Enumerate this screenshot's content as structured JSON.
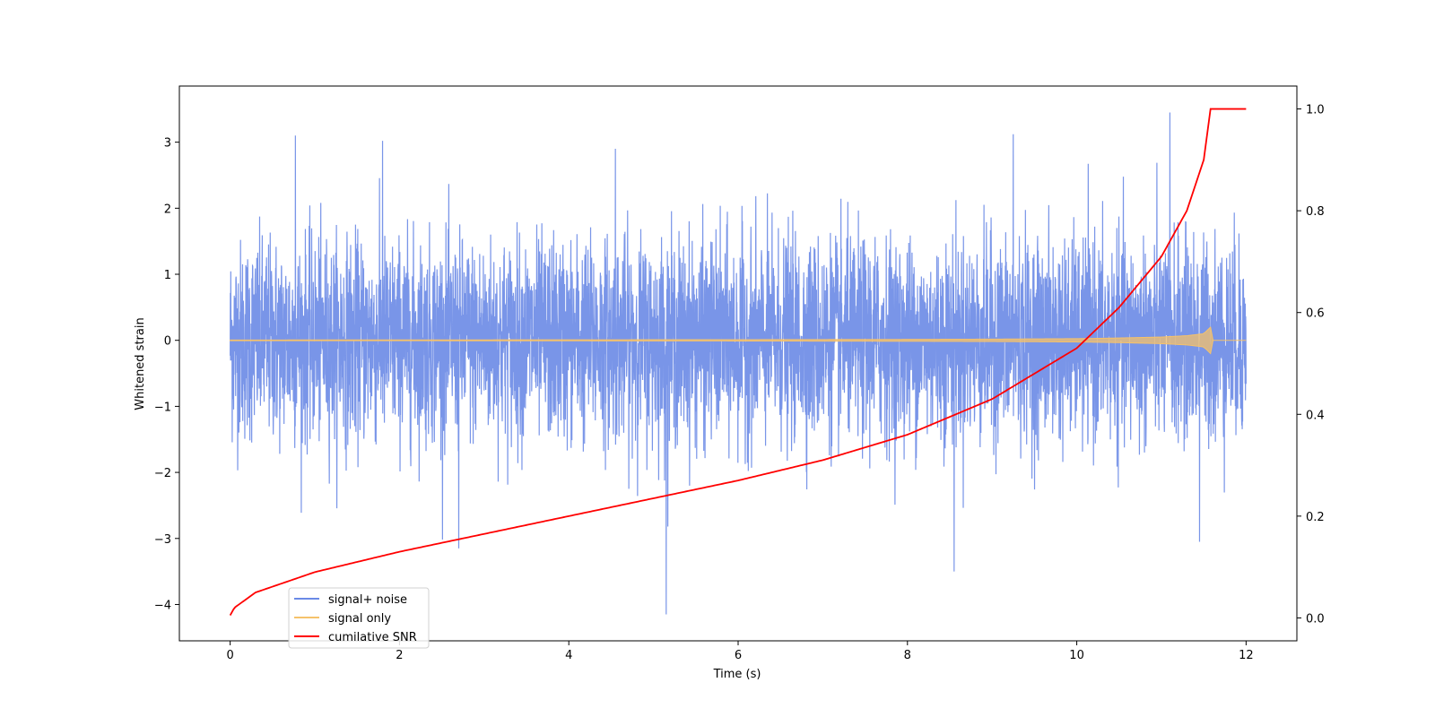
{
  "chart_data": {
    "type": "line",
    "xlabel": "Time (s)",
    "ylabel": "Whitened strain",
    "xlim": [
      -0.6,
      12.6
    ],
    "ylim": [
      -4.55,
      3.85
    ],
    "y2lim": [
      -0.045,
      1.045
    ],
    "x_ticks": [
      0,
      2,
      4,
      6,
      8,
      10,
      12
    ],
    "y_ticks": [
      -4,
      -3,
      -2,
      -1,
      0,
      1,
      2,
      3
    ],
    "y2_ticks": [
      0.0,
      0.2,
      0.4,
      0.6,
      0.8,
      1.0
    ],
    "x_tick_labels": [
      "0",
      "2",
      "4",
      "6",
      "8",
      "10",
      "12"
    ],
    "y_tick_labels": [
      "−4",
      "−3",
      "−2",
      "−1",
      "0",
      "1",
      "2",
      "3"
    ],
    "y2_tick_labels": [
      "0.0",
      "0.2",
      "0.4",
      "0.6",
      "0.8",
      "1.0"
    ],
    "legend_position": "lower-left",
    "series": [
      {
        "name": "signal+ noise",
        "color": "#6a8ae6",
        "axis": "left",
        "description_range": [
          -4.15,
          3.45
        ],
        "peaks": [
          {
            "x": 0.77,
            "y": 3.1
          },
          {
            "x": 1.8,
            "y": 3.02
          },
          {
            "x": 4.55,
            "y": 2.9
          },
          {
            "x": 9.25,
            "y": 3.12
          },
          {
            "x": 11.1,
            "y": 3.45
          },
          {
            "x": 5.15,
            "y": -4.15
          },
          {
            "x": 8.55,
            "y": -3.5
          },
          {
            "x": 2.7,
            "y": -3.15
          },
          {
            "x": 11.45,
            "y": -3.05
          }
        ]
      },
      {
        "name": "signal only",
        "color": "#f5c26b",
        "axis": "left",
        "x": [
          0,
          2,
          4,
          6,
          8,
          9,
          10,
          10.5,
          11,
          11.3,
          11.5,
          11.58,
          11.6,
          12
        ],
        "amplitude": [
          0.005,
          0.006,
          0.008,
          0.01,
          0.014,
          0.018,
          0.025,
          0.035,
          0.05,
          0.07,
          0.1,
          0.2,
          0.0,
          0.0
        ]
      },
      {
        "name": "cumilative SNR",
        "color": "#ff0000",
        "axis": "right",
        "x": [
          0,
          0.05,
          0.3,
          1,
          2,
          3,
          4,
          5,
          6,
          7,
          8,
          9,
          10,
          10.5,
          11,
          11.3,
          11.5,
          11.58,
          11.6,
          12
        ],
        "y": [
          0.005,
          0.02,
          0.05,
          0.09,
          0.13,
          0.165,
          0.2,
          0.235,
          0.27,
          0.31,
          0.36,
          0.43,
          0.53,
          0.61,
          0.71,
          0.8,
          0.9,
          1.0,
          1.0,
          1.0
        ]
      }
    ]
  }
}
